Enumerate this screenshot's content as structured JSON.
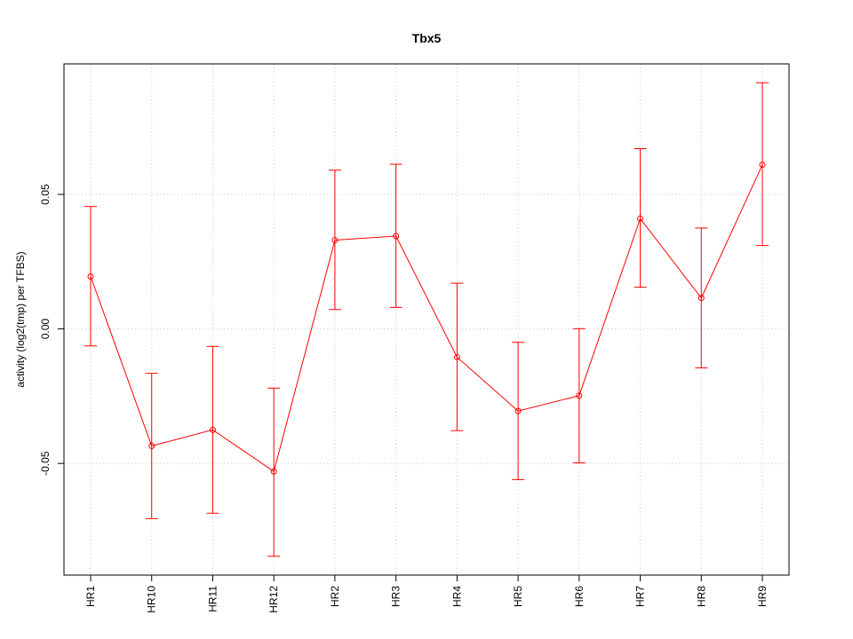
{
  "chart_data": {
    "type": "line",
    "title": "Tbx5",
    "xlabel": "",
    "ylabel": "activity (log2(tmp) per TFBS)",
    "categories": [
      "HR1",
      "HR10",
      "HR11",
      "HR12",
      "HR2",
      "HR3",
      "HR4",
      "HR5",
      "HR6",
      "HR7",
      "HR8",
      "HR9"
    ],
    "series": [
      {
        "values": [
          0.0195,
          -0.0435,
          -0.0375,
          -0.053,
          0.033,
          0.0345,
          -0.0105,
          -0.0305,
          -0.0248,
          0.041,
          0.0115,
          0.061
        ],
        "lower": [
          -0.0063,
          -0.0705,
          -0.0685,
          -0.0845,
          0.0072,
          0.008,
          -0.0378,
          -0.056,
          -0.0498,
          0.0155,
          -0.0145,
          0.031
        ],
        "upper": [
          0.0455,
          -0.0165,
          -0.0065,
          -0.022,
          0.059,
          0.0612,
          0.017,
          -0.005,
          0.0001,
          0.067,
          0.0375,
          0.0915
        ]
      }
    ],
    "yticks": [
      -0.05,
      0.0,
      0.05
    ],
    "ytick_labels": [
      "-0.05",
      "0.00",
      "0.05"
    ],
    "ylim": [
      -0.0915,
      0.0985
    ],
    "grid": true,
    "color": "#ff0000",
    "grid_color": "#c8c8c8"
  }
}
